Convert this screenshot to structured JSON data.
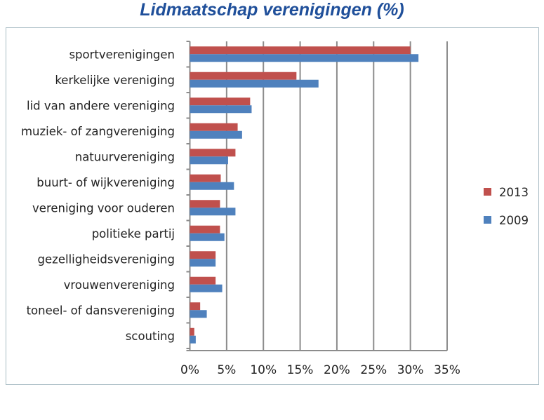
{
  "chart_data": {
    "type": "bar",
    "orientation": "horizontal",
    "title": "Lidmaatschap verenigingen (%)",
    "xlabel": "",
    "ylabel": "",
    "categories": [
      "sportverenigingen",
      "kerkelijke vereniging",
      "lid van andere vereniging",
      "muziek- of zangvereniging",
      "natuurvereniging",
      "buurt- of wijkvereniging",
      "vereniging voor ouderen",
      "politieke partij",
      "gezelligheidsvereniging",
      "vrouwenvereniging",
      "toneel- of dansvereniging",
      "scouting"
    ],
    "series": [
      {
        "name": "2013",
        "color": "#c0504d",
        "values": [
          30.0,
          14.5,
          8.2,
          6.5,
          6.2,
          4.2,
          4.1,
          4.1,
          3.5,
          3.5,
          1.4,
          0.6
        ]
      },
      {
        "name": "2009",
        "color": "#4f81bd",
        "values": [
          31.1,
          17.5,
          8.4,
          7.1,
          5.2,
          6.0,
          6.2,
          4.7,
          3.5,
          4.4,
          2.3,
          0.8
        ]
      }
    ],
    "xlim": [
      0,
      35
    ],
    "xticks": [
      "0%",
      "5%",
      "10%",
      "15%",
      "20%",
      "25%",
      "30%",
      "35%"
    ],
    "grid": "vertical",
    "legend": "right"
  }
}
